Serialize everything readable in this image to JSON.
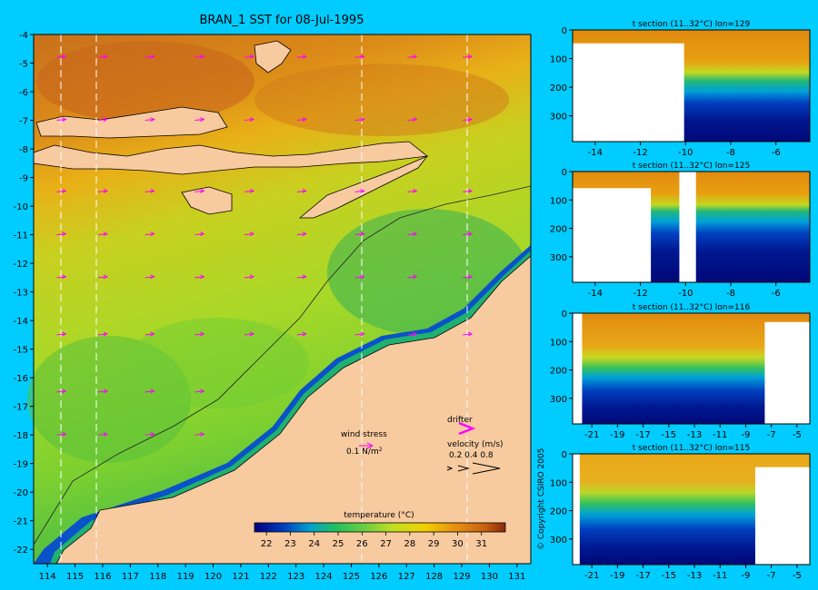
{
  "map": {
    "title": "BRAN_1 SST for 08-Jul-1995",
    "lat_ticks": [
      "-4",
      "-5",
      "-6",
      "-7",
      "-8",
      "-9",
      "-10",
      "-11",
      "-12",
      "-13",
      "-14",
      "-15",
      "-16",
      "-17",
      "-18",
      "-19",
      "-20",
      "-21",
      "-22"
    ],
    "lon_ticks": [
      "114",
      "115",
      "116",
      "117",
      "118",
      "119",
      "120",
      "121",
      "122",
      "123",
      "124",
      "125",
      "126",
      "127",
      "128",
      "129",
      "130",
      "131"
    ],
    "colorbar_title": "temperature (°C)",
    "colorbar_ticks": [
      "22",
      "23",
      "24",
      "25",
      "26",
      "27",
      "28",
      "29",
      "30",
      "31"
    ],
    "wind_label": "wind stress",
    "wind_scale_value": "0.1 N/m",
    "wind_scale_exp": "2",
    "drifter_label": "drifter",
    "velocity_label": "velocity (m/s)",
    "velocity_scale_text": "0.2 0.4 0.8",
    "copyright": "© Copyright CSIRO 2005",
    "colors": {
      "land": "#f7caa0",
      "deep_warm": "#c86a14",
      "warm": "#e8940c",
      "mid": "#e0c020",
      "cool": "#8cd22e",
      "cold": "#2aa860",
      "coast": "#0050c0",
      "background": "#00ccff",
      "drifter": "#ff00ff"
    }
  },
  "chart_data": [
    {
      "type": "heatmap",
      "title": "BRAN_1 SST for 08-Jul-1995",
      "xlabel": "",
      "ylabel": "",
      "x_range": [
        113.5,
        131.5
      ],
      "y_range": [
        -22.5,
        -4
      ],
      "colorbar": {
        "label": "temperature (°C)",
        "range": [
          21.5,
          32
        ],
        "ticks": [
          22,
          23,
          24,
          25,
          26,
          27,
          28,
          29,
          30,
          31
        ]
      },
      "section_longitudes": [
        114.5,
        115.8,
        125.3,
        129.2
      ]
    },
    {
      "type": "heatmap",
      "title": "t section (11..32°C) lon=129",
      "x_ticks": [
        "-14",
        "-12",
        "-10",
        "-8",
        "-6"
      ],
      "y_ticks": [
        "0",
        "100",
        "200",
        "300"
      ],
      "x_range": [
        -15,
        -4.5
      ],
      "y_range": [
        0,
        390
      ]
    },
    {
      "type": "heatmap",
      "title": "t section (11..32°C) lon=125",
      "x_ticks": [
        "-14",
        "-12",
        "-10",
        "-8",
        "-6"
      ],
      "y_ticks": [
        "0",
        "100",
        "200",
        "300"
      ],
      "x_range": [
        -15,
        -4.5
      ],
      "y_range": [
        0,
        390
      ]
    },
    {
      "type": "heatmap",
      "title": "t section (11..32°C) lon=116",
      "x_ticks": [
        "-21",
        "-19",
        "-17",
        "-15",
        "-13",
        "-11",
        "-9",
        "-7",
        "-5"
      ],
      "y_ticks": [
        "0",
        "100",
        "200",
        "300"
      ],
      "x_range": [
        -22.5,
        -4
      ],
      "y_range": [
        0,
        390
      ]
    },
    {
      "type": "heatmap",
      "title": "t section (11..32°C) lon=115",
      "x_ticks": [
        "-21",
        "-19",
        "-17",
        "-15",
        "-13",
        "-11",
        "-9",
        "-7",
        "-5"
      ],
      "y_ticks": [
        "0",
        "100",
        "200",
        "300"
      ],
      "x_range": [
        -22.5,
        -4
      ],
      "y_range": [
        0,
        390
      ]
    }
  ]
}
